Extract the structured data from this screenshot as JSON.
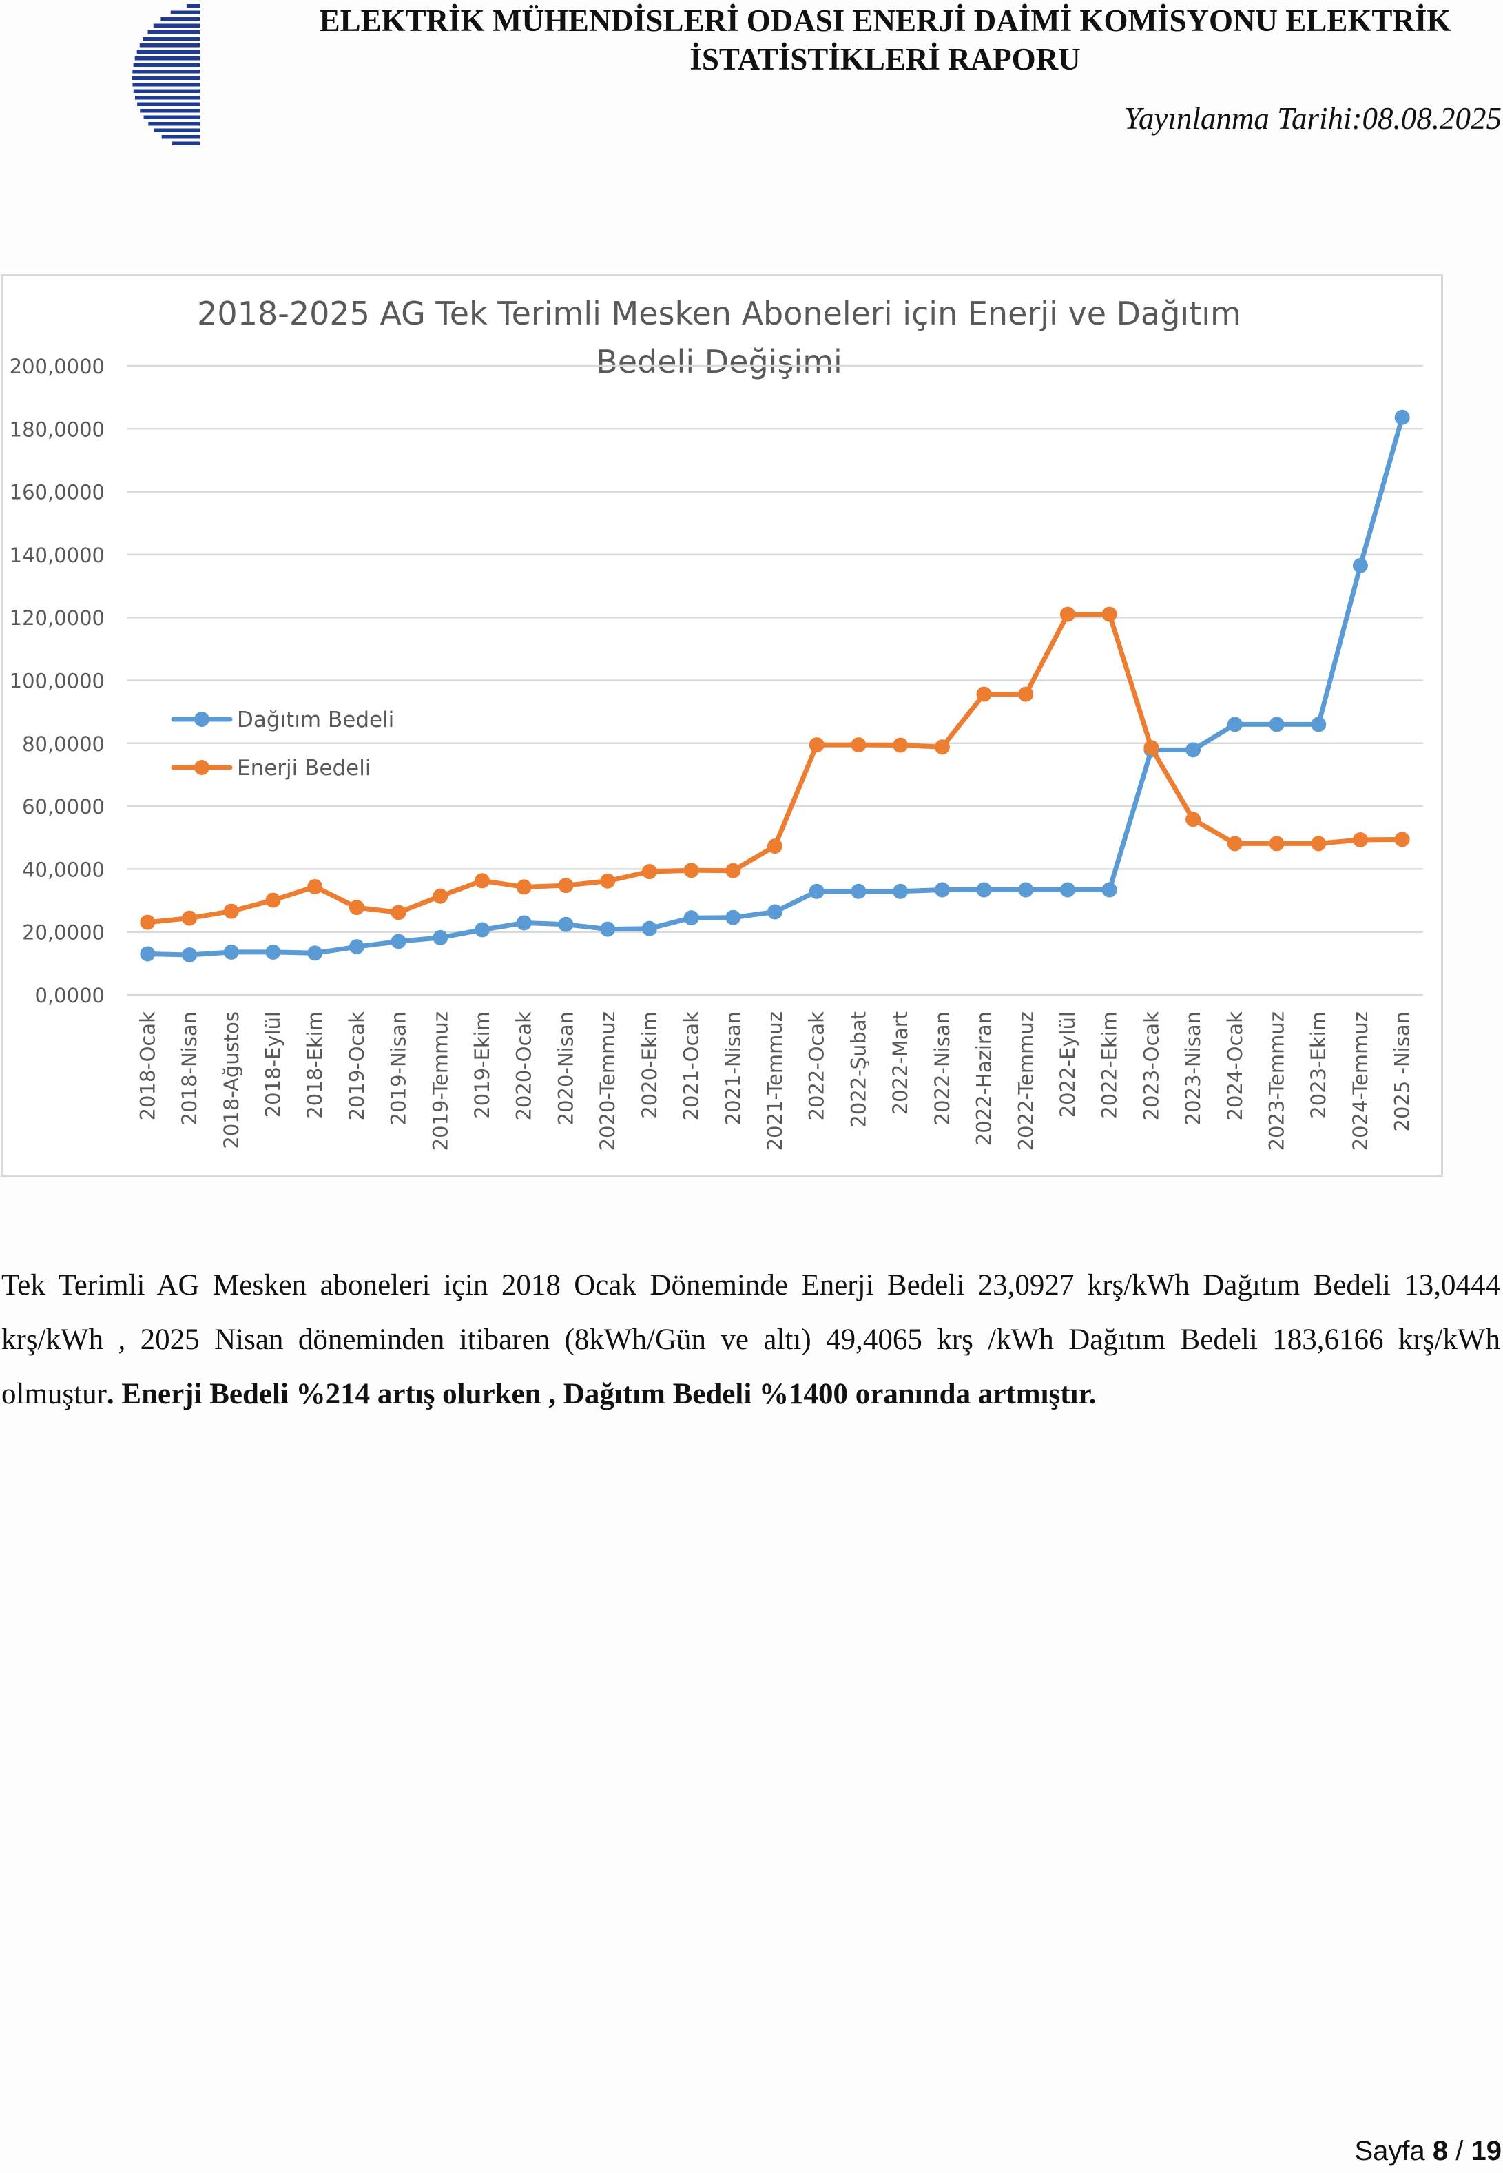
{
  "header": {
    "title_line1": "ELEKTRİK MÜHENDİSLERİ ODASI ENERJİ DAİMİ KOMİSYONU ELEKTRİK",
    "title_line2": "İSTATİSTİKLERİ RAPORU",
    "publish_date": "Yayınlanma Tarihi:08.08.2025",
    "logo_color": "#1f3a93"
  },
  "chart_data": {
    "type": "line",
    "title_line1": "2018-2025 AG Tek Terimli Mesken Aboneleri için Enerji ve Dağıtım",
    "title_line2": "Bedeli Değişimi",
    "categories": [
      "2018-Ocak",
      "2018-Nisan",
      "2018-Ağustos",
      "2018-Eylül",
      "2018-Ekim",
      "2019-Ocak",
      "2019-Nisan",
      "2019-Temmuz",
      "2019-Ekim",
      "2020-Ocak",
      "2020-Nisan",
      "2020-Temmuz",
      "2020-Ekim",
      "2021-Ocak",
      "2021-Nisan",
      "2021-Temmuz",
      "2022-Ocak",
      "2022-Şubat",
      "2022-Mart",
      "2022-Nisan",
      "2022-Haziran",
      "2022-Temmuz",
      "2022-Eylül",
      "2022-Ekim",
      "2023-Ocak",
      "2023-Nisan",
      "2024-Ocak",
      "2023-Temmuz",
      "2023-Ekim",
      "2024-Temmuz",
      "2025 -Nisan"
    ],
    "y_ticks": [
      "0,0000",
      "20,0000",
      "40,0000",
      "60,0000",
      "80,0000",
      "100,0000",
      "120,0000",
      "140,0000",
      "160,0000",
      "180,0000",
      "200,0000"
    ],
    "ylim": [
      0,
      200
    ],
    "grid": true,
    "legend_position": "left",
    "series": [
      {
        "name": "Dağıtım Bedeli",
        "color": "#5b9bd5",
        "values": [
          13.0444,
          12.7,
          13.6,
          13.6,
          13.3,
          15.3,
          17.0,
          18.2,
          20.7,
          22.9,
          22.4,
          20.9,
          21.1,
          24.5,
          24.6,
          26.4,
          32.9,
          32.9,
          32.9,
          33.4,
          33.4,
          33.4,
          33.4,
          33.4,
          77.9,
          77.9,
          86.0,
          86.0,
          86.0,
          136.5,
          183.6166
        ]
      },
      {
        "name": "Enerji Bedeli",
        "color": "#ed7d31",
        "values": [
          23.0927,
          24.4,
          26.6,
          30.1,
          34.4,
          27.8,
          26.2,
          31.4,
          36.3,
          34.3,
          34.8,
          36.2,
          39.2,
          39.6,
          39.5,
          47.3,
          79.5,
          79.5,
          79.4,
          78.8,
          95.6,
          95.6,
          121.0,
          121.0,
          78.6,
          55.8,
          48.1,
          48.1,
          48.1,
          49.3,
          49.4065
        ]
      }
    ]
  },
  "body": {
    "paragraph": "Tek Terimli AG Mesken aboneleri için 2018 Ocak Döneminde Enerji Bedeli 23,0927 krş/kWh Dağıtım Bedeli 13,0444 krş/kWh , 2025 Nisan döneminden itibaren (8kWh/Gün ve altı) 49,4065 krş /kWh Dağıtım Bedeli 183,6166 krş/kWh olmuştur",
    "paragraph_bold": ". Enerji Bedeli %214 artış olurken , Dağıtım Bedeli %1400 oranında artmıştır."
  },
  "footer": {
    "page_label": "Sayfa",
    "page_current": "8",
    "page_sep": "/",
    "page_total": "19"
  }
}
